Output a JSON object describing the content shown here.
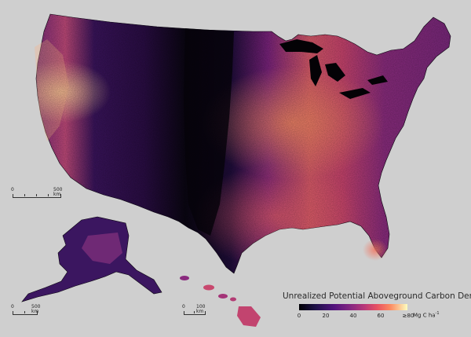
{
  "legend": {
    "title": "Unrealized Potential Aboveground Carbon Density",
    "ticks": [
      "0",
      "20",
      "40",
      "60",
      "≥80"
    ],
    "unit_main": "Mg C ha",
    "unit_sup": "-1",
    "colormap": [
      "#000004",
      "#1d1147",
      "#51127c",
      "#832681",
      "#b73779",
      "#e75263",
      "#fc8961",
      "#fcfdbf"
    ]
  },
  "scalebars": {
    "conus": {
      "start": "0",
      "end": "500 km"
    },
    "alaska": {
      "start": "0",
      "end": "500 km"
    },
    "hawaii": {
      "start": "0",
      "end": "100 km"
    }
  },
  "colors": {
    "background": "#cfcfcf",
    "no_data": "#050307"
  }
}
